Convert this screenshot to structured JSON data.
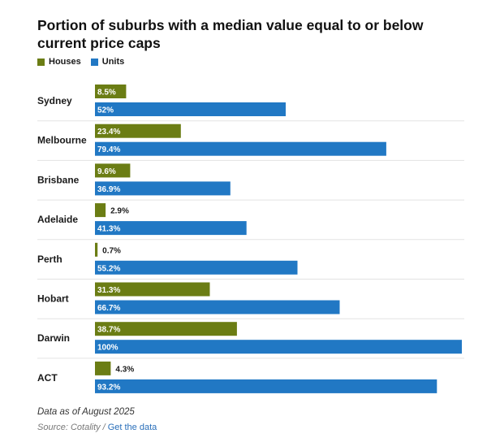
{
  "chart_data": {
    "type": "bar",
    "orientation": "horizontal",
    "title": "Portion of suburbs with a median value equal to or below current price caps",
    "categories": [
      "Sydney",
      "Melbourne",
      "Brisbane",
      "Adelaide",
      "Perth",
      "Hobart",
      "Darwin",
      "ACT"
    ],
    "series": [
      {
        "name": "Houses",
        "color": "#6b7d14",
        "values": [
          8.5,
          23.4,
          9.6,
          2.9,
          0.7,
          31.3,
          38.7,
          4.3
        ],
        "labels": [
          "8.5%",
          "23.4%",
          "9.6%",
          "2.9%",
          "0.7%",
          "31.3%",
          "38.7%",
          "4.3%"
        ]
      },
      {
        "name": "Units",
        "color": "#2178c4",
        "values": [
          52,
          79.4,
          36.9,
          41.3,
          55.2,
          66.7,
          100,
          93.2
        ],
        "labels": [
          "52%",
          "79.4%",
          "36.9%",
          "41.3%",
          "55.2%",
          "66.7%",
          "100%",
          "93.2%"
        ]
      }
    ],
    "xlim": [
      0,
      100
    ],
    "legend_position": "top-left",
    "grid": false
  },
  "footnote": "Data as of August 2025",
  "source": {
    "label": "Source: Cotality",
    "separator": "/",
    "link": "Get the data"
  }
}
